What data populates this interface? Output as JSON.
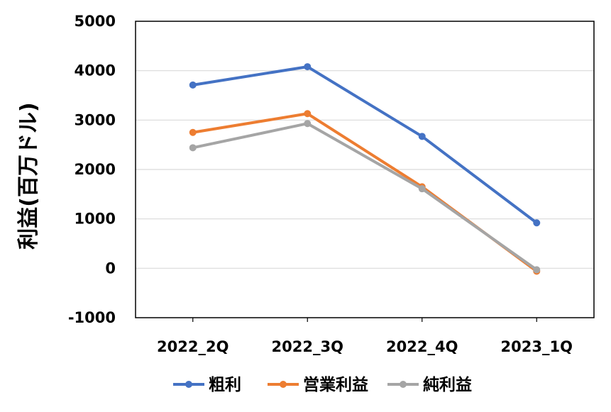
{
  "chart_data": {
    "type": "line",
    "title": "",
    "xlabel": "",
    "ylabel": "利益(百万ドル)",
    "categories": [
      "2022_2Q",
      "2022_3Q",
      "2022_4Q",
      "2023_1Q"
    ],
    "ylim": [
      -1000,
      5000
    ],
    "yticks": [
      5000,
      4000,
      3000,
      2000,
      1000,
      0,
      -1000
    ],
    "grid": true,
    "legend_position": "bottom",
    "series": [
      {
        "name": "粗利",
        "color": "#4472C4",
        "values": [
          3710,
          4080,
          2670,
          920
        ]
      },
      {
        "name": "営業利益",
        "color": "#ED7D31",
        "values": [
          2750,
          3130,
          1650,
          -60
        ]
      },
      {
        "name": "純利益",
        "color": "#A5A5A5",
        "values": [
          2440,
          2930,
          1610,
          -30
        ]
      }
    ]
  }
}
